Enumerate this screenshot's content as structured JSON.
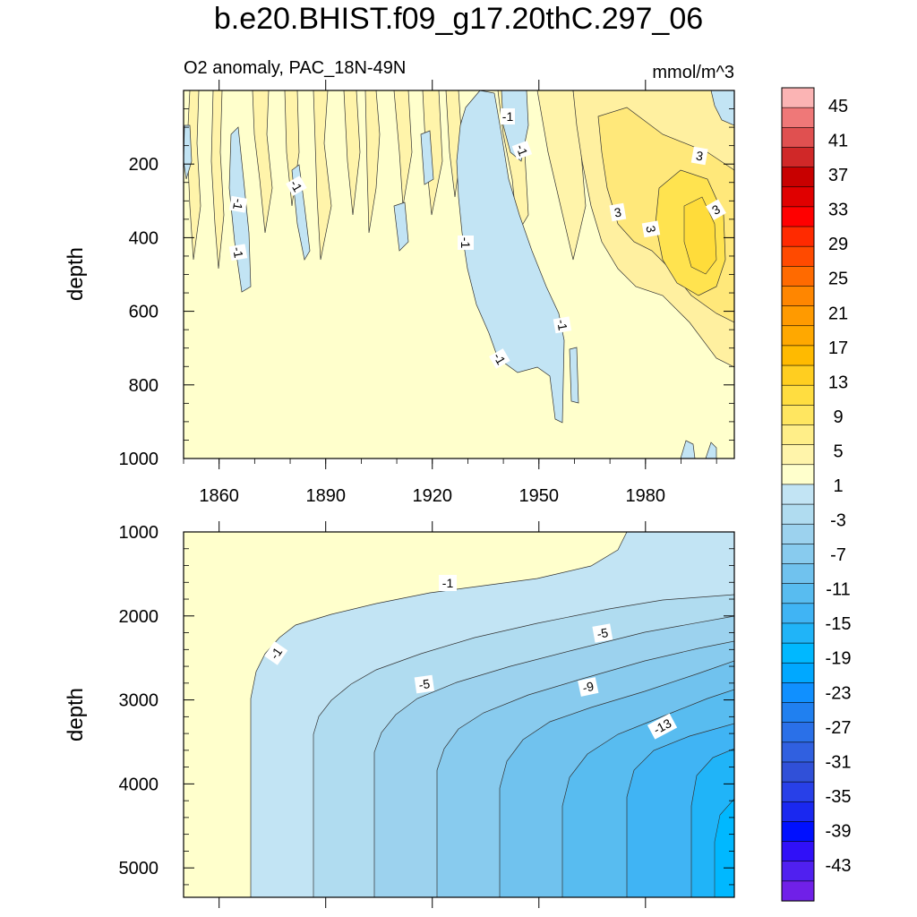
{
  "page_title": "b.e20.BHIST.f09_g17.20thC.297_06",
  "panel_left_title": "O2 anomaly, PAC_18N-49N",
  "panel_right_title": "mmol/m^3",
  "colors": {
    "background": "#ffffff",
    "frame": "#000000",
    "contour_line": "#333333"
  },
  "chart_data": [
    {
      "type": "heatmap",
      "title": "O2 anomaly, PAC_18N-49N",
      "units": "mmol/m^3",
      "xlabel": "",
      "ylabel": "depth",
      "xlim": [
        1850,
        2005
      ],
      "ylim": [
        1000,
        0
      ],
      "xticks": [
        "1860",
        "1890",
        "1920",
        "1950",
        "1980"
      ],
      "yticks": [
        "200",
        "400",
        "600",
        "800",
        "1000"
      ],
      "contour_labels": [
        "-1",
        "-1",
        "-1",
        "-1",
        "-1",
        "-1",
        "-1",
        "-1",
        "-1",
        "3",
        "3",
        "3",
        "3"
      ],
      "features": [
        {
          "name": "negative plume",
          "x_start": 1925,
          "x_end": 1958,
          "depth_top": 50,
          "depth_bottom": 900,
          "value": -1
        },
        {
          "name": "positive core",
          "x_center": 1993,
          "depth_center": 380,
          "value": 5
        }
      ]
    },
    {
      "type": "heatmap",
      "title": "",
      "xlabel": "",
      "ylabel": "depth",
      "xlim": [
        1850,
        2005
      ],
      "ylim": [
        5350,
        1000
      ],
      "yticks": [
        "1000",
        "2000",
        "3000",
        "4000",
        "5000"
      ],
      "contour_labels": [
        "-1",
        "-1",
        "-5",
        "-5",
        "-9",
        "-13"
      ],
      "features": [
        {
          "name": "deep negative anomaly",
          "x_center": 2000,
          "depth_center": 4200,
          "value": -15
        }
      ]
    }
  ],
  "colorbar": {
    "labels": [
      "45",
      "41",
      "37",
      "33",
      "29",
      "25",
      "21",
      "17",
      "13",
      "9",
      "5",
      "1",
      "-3",
      "-7",
      "-11",
      "-15",
      "-19",
      "-23",
      "-27",
      "-31",
      "-35",
      "-39",
      "-43"
    ],
    "colors": [
      "#fbb4b4",
      "#ef7878",
      "#e05050",
      "#d02828",
      "#c80000",
      "#e00000",
      "#ff0000",
      "#ff2a00",
      "#ff4a00",
      "#ff6a00",
      "#ff8600",
      "#ff9a00",
      "#ffa800",
      "#ffba00",
      "#ffce20",
      "#ffdd40",
      "#ffe660",
      "#ffee88",
      "#fff4aa",
      "#ffffcc",
      "#c2e4f4",
      "#b0dcf0",
      "#9cd2ee",
      "#88cbee",
      "#70c2ee",
      "#58bcf0",
      "#40b4f4",
      "#20b4f8",
      "#00b8ff",
      "#00a8ff",
      "#1090ff",
      "#2080f0",
      "#2a70e8",
      "#3060e0",
      "#3050d8",
      "#2840e8",
      "#1a28f0",
      "#0010ff",
      "#3010f8",
      "#5020f0",
      "#7020e8"
    ]
  }
}
